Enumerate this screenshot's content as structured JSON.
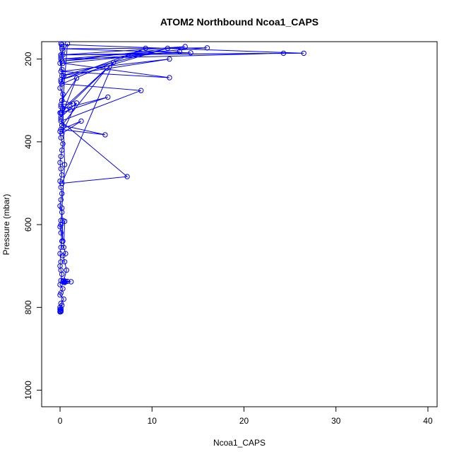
{
  "chart_data": {
    "type": "line",
    "title": "ATOM2 Northbound Ncoa1_CAPS",
    "xlabel": "Ncoa1_CAPS",
    "ylabel": "Pressure (mbar)",
    "xlim": [
      -2,
      41
    ],
    "ylim": [
      1040,
      158
    ],
    "y_reversed": true,
    "x_ticks": [
      0,
      10,
      20,
      30,
      40
    ],
    "x_tick_labels": [
      "0",
      "10",
      "20",
      "30",
      "40"
    ],
    "y_ticks": [
      200,
      400,
      600,
      800,
      1000
    ],
    "y_tick_labels": [
      "200",
      "400",
      "600",
      "800",
      "1000"
    ],
    "grid": false,
    "legend": "none",
    "marker": "open-circle",
    "color": "#0000ff",
    "series": [
      {
        "x": [
          0.1,
          0.2,
          0.3,
          0.1,
          0.0,
          0.2,
          0.4,
          0.1,
          0.0,
          0.3,
          0.2,
          0.1,
          0.0,
          0.1,
          0.2,
          0.0,
          0.1,
          0.3,
          0.2,
          0.1,
          0.0,
          0.1,
          0.2,
          0.0,
          0.1,
          0.2,
          0.1,
          0.0,
          0.2,
          0.1,
          0.0,
          0.1,
          0.2,
          0.1,
          0.0,
          0.1,
          0.0,
          0.1,
          0.2,
          0.1,
          0.0,
          0.3,
          0.1,
          0.0,
          0.4,
          0.1,
          0.2,
          0.0,
          0.1,
          0.0,
          0.1,
          0.0,
          0.1,
          0.0
        ],
        "y": [
          163,
          170,
          180,
          195,
          210,
          225,
          240,
          255,
          270,
          285,
          300,
          315,
          330,
          345,
          360,
          375,
          390,
          405,
          420,
          435,
          450,
          465,
          480,
          495,
          510,
          525,
          540,
          555,
          570,
          590,
          605,
          620,
          640,
          655,
          670,
          690,
          700,
          710,
          720,
          735,
          745,
          755,
          765,
          770,
          780,
          790,
          795,
          800,
          803,
          805,
          807,
          809,
          810,
          811
        ]
      },
      {
        "x": [
          0.2,
          26.5,
          0.3,
          24.3,
          0.1,
          16.0,
          0.2,
          14.2,
          0.1,
          13.6,
          0.2,
          13.0,
          0.3,
          11.9,
          0.1,
          11.9,
          0.2,
          11.7,
          0.1,
          9.3,
          0.2,
          8.8,
          0.1,
          7.3,
          0.2,
          5.8,
          0.1,
          5.2,
          0.3,
          5.1,
          0.2,
          4.9,
          0.1,
          2.3,
          0.2,
          1.8,
          0.1,
          1.8,
          0.2,
          1.4,
          0.1,
          1.1,
          0.2,
          0.8,
          0.1,
          0.5,
          0.2,
          0.3,
          0.1
        ],
        "y": [
          165,
          186,
          190,
          186,
          200,
          173,
          175,
          185,
          190,
          170,
          205,
          182,
          210,
          245,
          230,
          200,
          240,
          174,
          250,
          174,
          260,
          276,
          350,
          484,
          500,
          208,
          330,
          292,
          320,
          222,
          360,
          383,
          370,
          350,
          380,
          306,
          340,
          246,
          300,
          308,
          310,
          323,
          330,
          163,
          190,
          455,
          560,
          640,
          600
        ]
      },
      {
        "x": [
          0.3,
          0.5,
          0.4,
          0.6,
          0.3,
          0.5,
          0.7,
          0.4,
          0.6,
          0.5,
          1.2,
          0.8,
          0.4,
          0.5,
          0.3
        ],
        "y": [
          590,
          592,
          655,
          670,
          675,
          690,
          710,
          735,
          737,
          738,
          738,
          737,
          737,
          740,
          738
        ]
      }
    ]
  }
}
